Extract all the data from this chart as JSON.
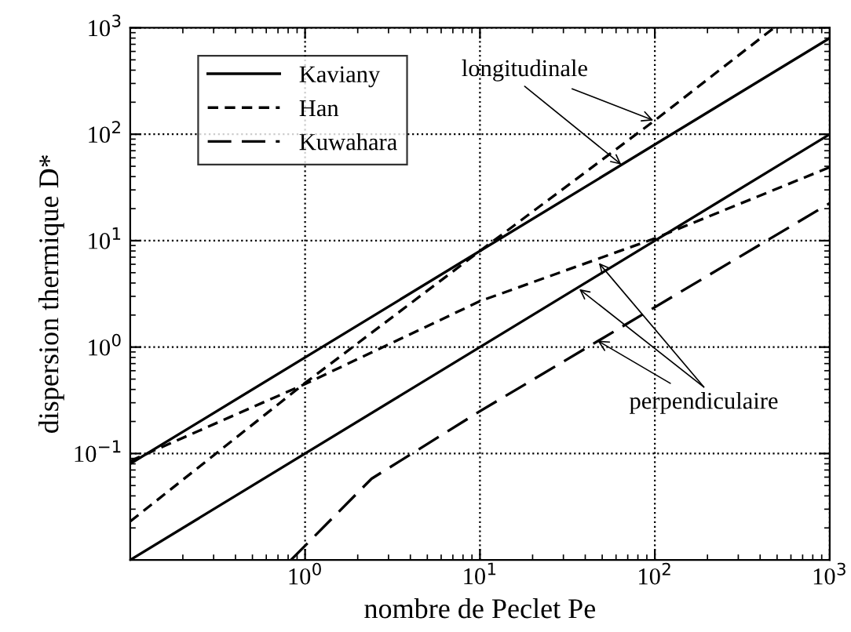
{
  "chart_data": {
    "type": "line",
    "xlabel": "nombre de Peclet Pe",
    "ylabel": "dispersion thermique D*",
    "log": "xy",
    "grid": true,
    "legend": "top left",
    "xlim": [
      0.1,
      1000
    ],
    "ylim": [
      0.01,
      1000
    ],
    "xticks": [
      {
        "value": 1,
        "label": "10$^{0}$"
      },
      {
        "value": 10,
        "label": "10$^{1}$"
      },
      {
        "value": 100,
        "label": "10$^{2}$"
      },
      {
        "value": 1000,
        "label": "10$^{3}$"
      }
    ],
    "yticks": [
      {
        "value": 0.1,
        "label": "10$^{−1}$"
      },
      {
        "value": 1,
        "label": "10$^{0}$"
      },
      {
        "value": 10,
        "label": "10$^{1}$"
      },
      {
        "value": 100,
        "label": "10$^{2}$"
      },
      {
        "value": 1000,
        "label": "10$^{3}$"
      }
    ],
    "series": [
      {
        "name": "Kaviany",
        "color": "#000000",
        "line_style": "solid",
        "x": [
          0.1,
          1000
        ],
        "values": [
          0.08,
          800
        ]
      },
      {
        "name": "Han",
        "color": "#000000",
        "line_style": "dashed",
        "x": [
          0.1,
          1,
          10,
          100,
          480
        ],
        "values": [
          0.023,
          0.46,
          8,
          135,
          1000
        ]
      },
      {
        "name": "Kuwahara",
        "color": "#000000",
        "line_style": "longdash",
        "x": [
          0.83,
          2.4,
          10,
          1000
        ],
        "values": [
          0.01,
          0.058,
          0.25,
          22.5
        ]
      },
      {
        "color": "#000000",
        "line_style": "solid",
        "x": [
          0.1,
          1000
        ],
        "values": [
          0.01,
          100
        ]
      },
      {
        "color": "#000000",
        "line_style": "dashed",
        "x": [
          0.1,
          1,
          10,
          100,
          1000
        ],
        "values": [
          0.085,
          0.45,
          2.7,
          10.5,
          49
        ]
      }
    ],
    "annotations": [
      {
        "text": "longitudinale",
        "x": 98,
        "y": 135
      },
      {
        "text": "perpendiculaire",
        "x": 47,
        "y": 1.15
      }
    ]
  }
}
